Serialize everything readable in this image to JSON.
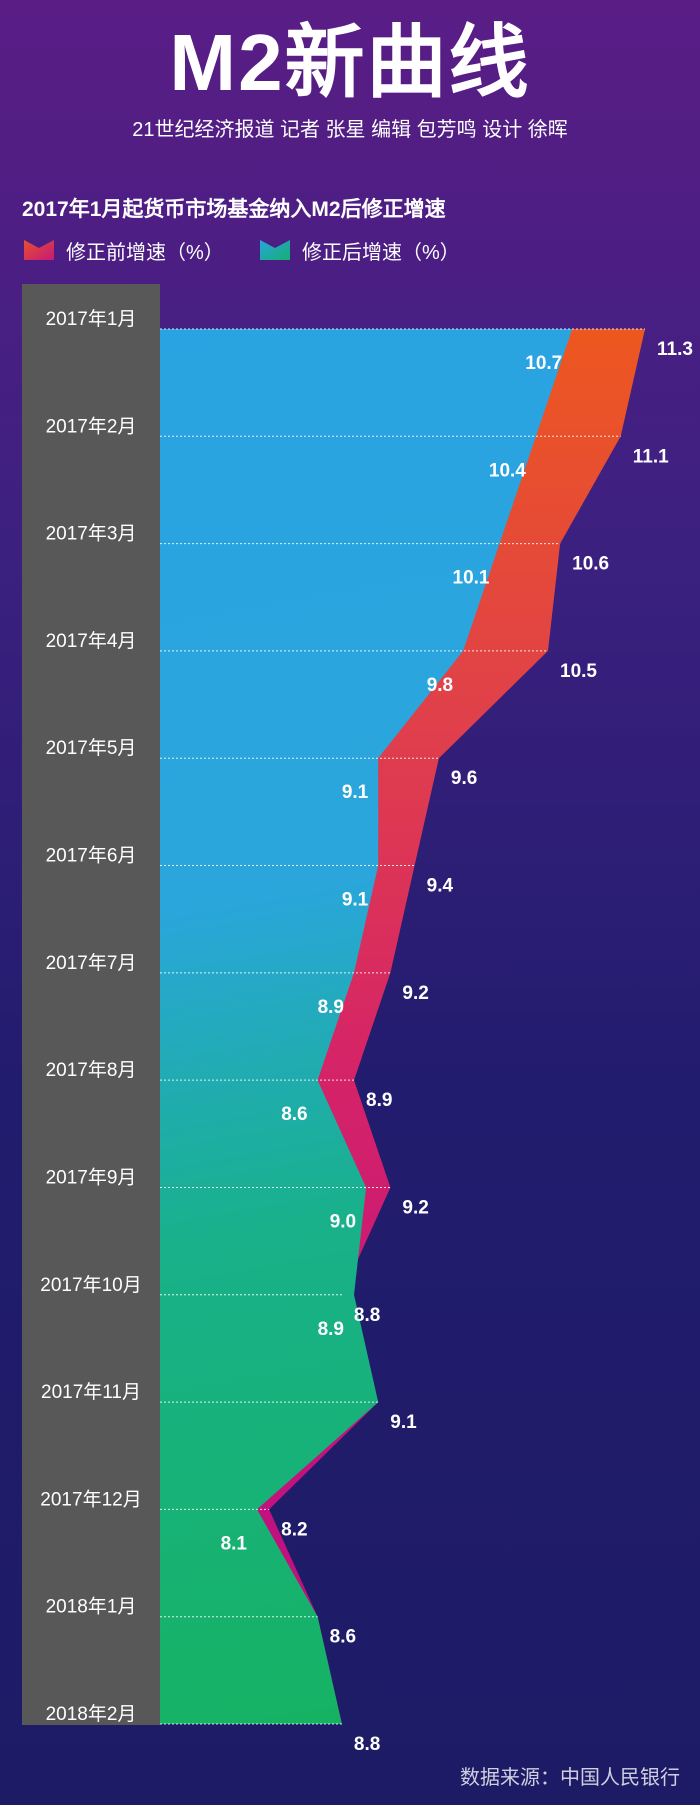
{
  "header": {
    "title": "M2新曲线",
    "byline": "21世纪经济报道 记者 张星 编辑 包芳鸣 设计 徐晖"
  },
  "chart_data": {
    "type": "area",
    "title": "2017年1月起货币市场基金纳入M2后修正增速",
    "categories": [
      "2017年1月",
      "2017年2月",
      "2017年3月",
      "2017年4月",
      "2017年5月",
      "2017年6月",
      "2017年7月",
      "2017年8月",
      "2017年9月",
      "2017年10月",
      "2017年11月",
      "2017年12月",
      "2018年1月",
      "2018年2月"
    ],
    "series": [
      {
        "name": "修正前增速（%）",
        "values": [
          11.3,
          11.1,
          10.6,
          10.5,
          9.6,
          9.4,
          9.2,
          8.9,
          9.2,
          8.8,
          9.1,
          8.2,
          8.6,
          8.8
        ],
        "color": "#e8502a"
      },
      {
        "name": "修正后增速（%）",
        "values": [
          10.7,
          10.4,
          10.1,
          9.8,
          9.1,
          9.1,
          8.9,
          8.6,
          9.0,
          8.9,
          null,
          8.1,
          null,
          null
        ],
        "color": "#2aa3e0"
      }
    ],
    "orientation": "horizontal",
    "grid": true
  },
  "footer": {
    "source": "数据来源：中国人民银行"
  }
}
